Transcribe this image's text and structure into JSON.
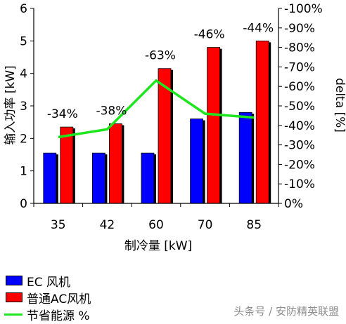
{
  "chart_data": {
    "type": "bar",
    "categories": [
      "35",
      "42",
      "60",
      "70",
      "85"
    ],
    "series": [
      {
        "name": "EC 风机",
        "type": "bar",
        "axis": "left",
        "color": "#0000ff",
        "values": [
          1.55,
          1.55,
          1.55,
          2.6,
          2.8
        ]
      },
      {
        "name": "普通AC风机",
        "type": "bar",
        "axis": "left",
        "color": "#ff0000",
        "values": [
          2.35,
          2.45,
          4.15,
          4.8,
          5.0
        ]
      },
      {
        "name": "节省能源 %",
        "type": "line",
        "axis": "right",
        "color": "#1ee61e",
        "values": [
          -34,
          -38,
          -63,
          -46,
          -44
        ]
      }
    ],
    "data_labels": [
      "-34%",
      "-38%",
      "-63%",
      "-46%",
      "-44%"
    ],
    "xlabel": "制冷量 [kW]",
    "ylabel": "输入功率 [kW]",
    "y2label": "delta [%]",
    "ylim": [
      0,
      6
    ],
    "y_ticks": [
      "0",
      "1",
      "2",
      "3",
      "4",
      "5",
      "6"
    ],
    "y2lim": [
      0,
      -100
    ],
    "y2_ticks": [
      "0%",
      "-10%",
      "-20%",
      "-30%",
      "-40%",
      "-50%",
      "-60%",
      "-70%",
      "-80%",
      "-90%",
      "-100%"
    ],
    "grid": false,
    "legend_position": "bottom-left"
  },
  "legend": {
    "items": [
      "EC 风机",
      "普通AC风机",
      "节省能源 %"
    ]
  },
  "watermark": "头条号 / 安防精英联盟"
}
